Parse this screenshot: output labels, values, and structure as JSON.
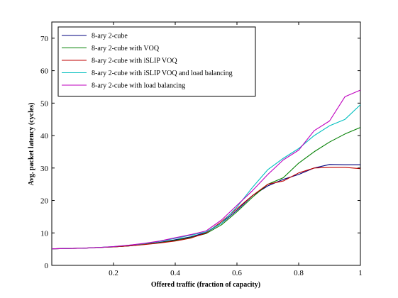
{
  "chart_data": {
    "type": "line",
    "xlabel": "Offered traffic (fraction of capacity)",
    "ylabel": "Avg. packet latency (cycles)",
    "xlim": [
      0,
      1
    ],
    "ylim": [
      0,
      75
    ],
    "xticks": [
      0.2,
      0.4,
      0.6,
      0.8,
      1
    ],
    "xtick_labels": [
      "0.2",
      "0.4",
      "0.6",
      "0.8",
      "1"
    ],
    "yticks": [
      0,
      10,
      20,
      30,
      40,
      50,
      60,
      70
    ],
    "ytick_labels": [
      "0",
      "10",
      "20",
      "30",
      "40",
      "50",
      "60",
      "70"
    ],
    "grid": false,
    "legend_position": "top-left",
    "x": [
      0.0,
      0.05,
      0.1,
      0.15,
      0.2,
      0.25,
      0.3,
      0.35,
      0.4,
      0.45,
      0.5,
      0.55,
      0.6,
      0.65,
      0.7,
      0.75,
      0.8,
      0.85,
      0.9,
      0.95,
      1.0
    ],
    "series": [
      {
        "name": "8-ary 2-cube",
        "color": "#00007f",
        "values": [
          5.1,
          5.2,
          5.3,
          5.5,
          5.7,
          6.0,
          6.5,
          7.1,
          7.9,
          8.8,
          10.1,
          13.0,
          17.0,
          21.5,
          24.5,
          26.5,
          28.0,
          30.0,
          31.1,
          31.0,
          31.0
        ]
      },
      {
        "name": "8-ary 2-cube with VOQ",
        "color": "#007f00",
        "values": [
          5.1,
          5.2,
          5.3,
          5.5,
          5.7,
          6.0,
          6.5,
          7.0,
          7.7,
          8.6,
          9.8,
          12.5,
          16.5,
          21.0,
          25.0,
          27.0,
          31.5,
          35.0,
          38.0,
          40.5,
          42.5
        ]
      },
      {
        "name": "8-ary 2-cube with iSLIP VOQ",
        "color": "#bf0000",
        "values": [
          5.1,
          5.2,
          5.3,
          5.5,
          5.7,
          6.0,
          6.4,
          6.9,
          7.5,
          8.4,
          10.0,
          13.5,
          17.5,
          21.5,
          25.0,
          26.0,
          28.5,
          30.0,
          30.2,
          30.2,
          29.8
        ]
      },
      {
        "name": "8-ary 2-cube with iSLIP VOQ and load balancing",
        "color": "#00bfbf",
        "values": [
          5.1,
          5.2,
          5.3,
          5.5,
          5.8,
          6.2,
          6.7,
          7.4,
          8.3,
          9.3,
          10.3,
          13.0,
          18.0,
          24.0,
          29.5,
          33.0,
          36.0,
          40.0,
          43.0,
          45.0,
          49.5
        ]
      },
      {
        "name": "8-ary 2-cube with load balancing",
        "color": "#bf00bf",
        "values": [
          5.1,
          5.2,
          5.3,
          5.5,
          5.8,
          6.2,
          6.8,
          7.5,
          8.5,
          9.5,
          10.6,
          14.0,
          18.5,
          23.0,
          28.0,
          32.5,
          35.5,
          41.5,
          44.5,
          52.0,
          54.0
        ]
      }
    ]
  }
}
